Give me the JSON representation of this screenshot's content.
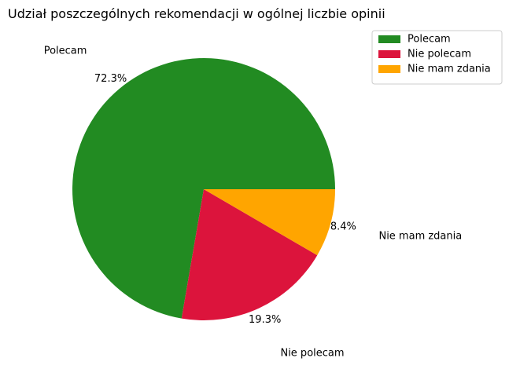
{
  "chart_data": {
    "type": "pie",
    "title": "Udział poszczególnych rekomendacji w ogólnej liczbie opinii",
    "slices": [
      {
        "label": "Polecam",
        "value": 72.3,
        "pct_label": "72.3%",
        "color": "#228B22"
      },
      {
        "label": "Nie polecam",
        "value": 19.3,
        "pct_label": "19.3%",
        "color": "#DC143C"
      },
      {
        "label": "Nie mam zdania",
        "value": 8.4,
        "pct_label": "8.4%",
        "color": "#FFA500"
      }
    ],
    "start_angle_deg": 0,
    "direction": "counterclockwise",
    "legend": {
      "position": "top-right",
      "entries": [
        "Polecam",
        "Nie polecam",
        "Nie mam zdania"
      ]
    }
  }
}
